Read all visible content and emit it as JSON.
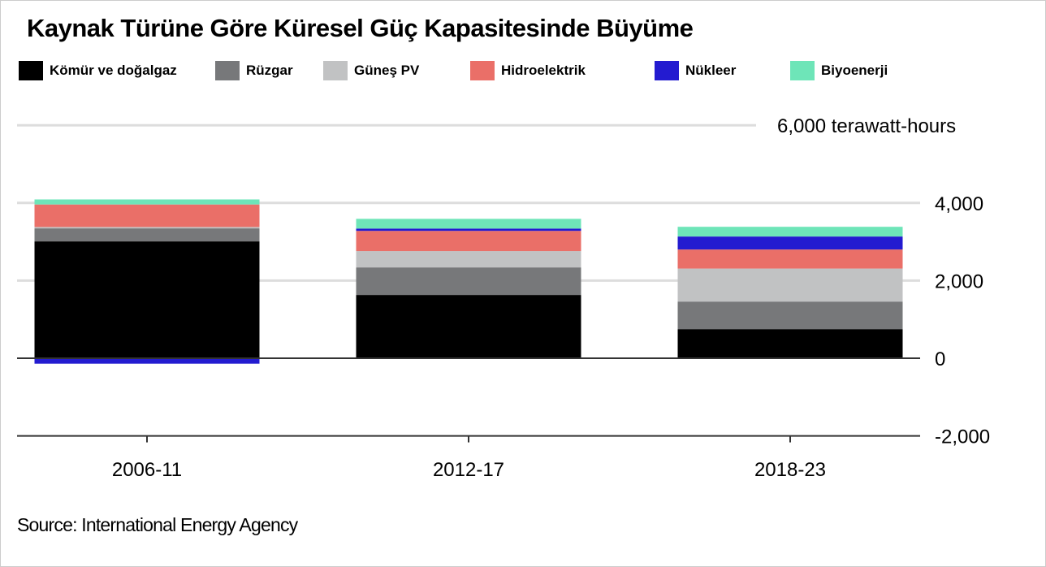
{
  "chart_data": {
    "type": "bar",
    "stacked": true,
    "title": "Kaynak Türüne Göre Küresel Güç Kapasitesinde Büyüme",
    "unit_label": "6,000 terawatt-hours",
    "ylim": [
      -2000,
      6000
    ],
    "yticks": [
      -2000,
      0,
      2000,
      4000,
      6000
    ],
    "ytick_labels": [
      "-2,000",
      "0",
      "2,000",
      "4,000",
      "6,000 terawatt-hours"
    ],
    "categories": [
      "2006-11",
      "2012-17",
      "2018-23"
    ],
    "series": [
      {
        "name": "Kömür ve doğalgaz",
        "color": "#000000",
        "values": [
          3010,
          1630,
          750
        ]
      },
      {
        "name": "Rüzgar",
        "color": "#77787a",
        "values": [
          335,
          710,
          710
        ]
      },
      {
        "name": "Güneş PV",
        "color": "#c1c2c3",
        "values": [
          35,
          420,
          850
        ]
      },
      {
        "name": "Hidroelektrik",
        "color": "#ea6f68",
        "values": [
          580,
          520,
          490
        ]
      },
      {
        "name": "Nükleer",
        "color": "#231bd0",
        "values": [
          -140,
          60,
          335
        ]
      },
      {
        "name": "Biyoenerji",
        "color": "#6ee5b8",
        "values": [
          130,
          250,
          250
        ]
      }
    ],
    "legend_position": "top",
    "grid": true
  },
  "source": "Source: International Energy Agency"
}
